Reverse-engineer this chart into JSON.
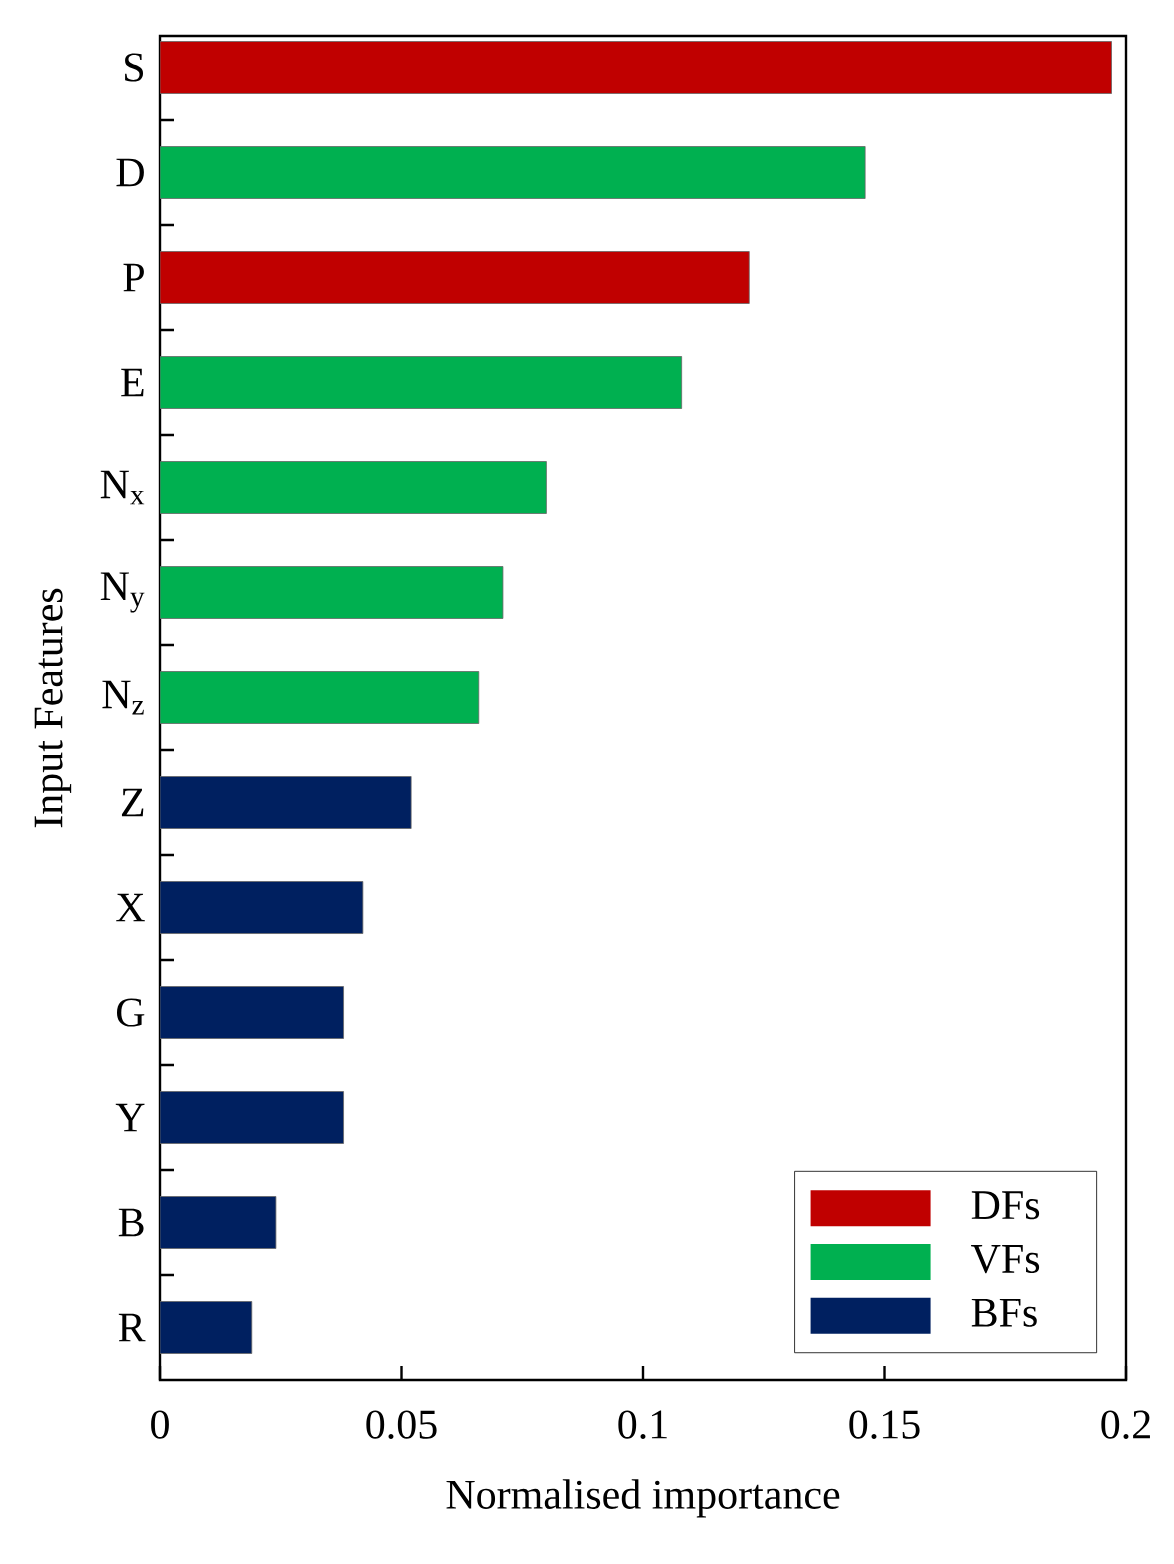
{
  "chart_data": {
    "type": "bar",
    "orientation": "horizontal",
    "xlabel": "Normalised importance",
    "ylabel": "Input Features",
    "categories": [
      "S",
      "D",
      "P",
      "E",
      "N$_{x}$",
      "N$_{y}$",
      "N$_{z}$",
      "Z",
      "X",
      "G",
      "Y",
      "B",
      "R"
    ],
    "series": [
      {
        "name": "DFs",
        "color": "#c00000",
        "values": [
          0.197,
          null,
          0.122,
          null,
          null,
          null,
          null,
          null,
          null,
          null,
          null,
          null,
          null
        ]
      },
      {
        "name": "VFs",
        "color": "#00b050",
        "values": [
          null,
          0.146,
          null,
          0.108,
          0.08,
          0.071,
          0.066,
          null,
          null,
          null,
          null,
          null,
          null
        ]
      },
      {
        "name": "BFs",
        "color": "#002060",
        "values": [
          null,
          null,
          null,
          null,
          null,
          null,
          null,
          0.052,
          0.042,
          0.038,
          0.038,
          0.024,
          0.019
        ]
      }
    ],
    "xlim": [
      0,
      0.2
    ],
    "xticks": [
      0,
      0.05,
      0.1,
      0.15,
      0.2
    ],
    "legend": "bottom right"
  }
}
